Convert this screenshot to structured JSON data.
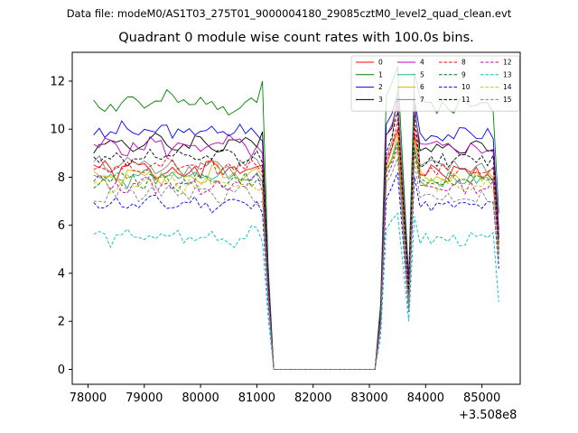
{
  "figure": {
    "suptitle": "Data file: modeM0/AS1T03_275T01_9000004180_29085cztM0_level2_quad_clean.evt"
  },
  "chart_data": {
    "type": "line",
    "title": "Quadrant 0 module wise count rates with 100.0s bins.",
    "xlabel": "",
    "ylabel": "",
    "x_offset_label": "+3.508e8",
    "xlim": [
      77720,
      85680
    ],
    "ylim": [
      -0.62,
      13.2
    ],
    "x_ticks": [
      78000,
      79000,
      80000,
      81000,
      82000,
      83000,
      84000,
      85000
    ],
    "y_ticks": [
      0,
      2,
      4,
      6,
      8,
      10,
      12
    ],
    "grid": false,
    "legend_position": "top-right",
    "legend_columns": 4,
    "x_start": 78100,
    "x_step": 100,
    "n_points": 73,
    "gap_range": [
      81400,
      83100
    ],
    "series": [
      {
        "name": "0",
        "color": "#ff0000",
        "dash": "solid",
        "base": 8.3,
        "amp": 0.35,
        "seed": 1,
        "edge_drop": 8.5,
        "spike_peak": 10.0,
        "spike_dip": 3.5,
        "end_value": 5.0
      },
      {
        "name": "1",
        "color": "#008000",
        "dash": "solid",
        "base": 11.1,
        "amp": 0.35,
        "seed": 2,
        "edge_drop": 12.0,
        "spike_peak": 12.6,
        "spike_dip": 3.8,
        "end_value": 6.5
      },
      {
        "name": "2",
        "color": "#0000ff",
        "dash": "solid",
        "base": 9.9,
        "amp": 0.3,
        "seed": 3,
        "edge_drop": 9.5,
        "spike_peak": 11.5,
        "spike_dip": 3.6,
        "end_value": 5.8
      },
      {
        "name": "3",
        "color": "#000000",
        "dash": "solid",
        "base": 9.4,
        "amp": 0.3,
        "seed": 4,
        "edge_drop": 9.9,
        "spike_peak": 11.3,
        "spike_dip": 3.3,
        "end_value": 5.5
      },
      {
        "name": "4",
        "color": "#c000c0",
        "dash": "solid",
        "base": 9.3,
        "amp": 0.35,
        "seed": 5,
        "edge_drop": 9.0,
        "spike_peak": 11.0,
        "spike_dip": 3.4,
        "end_value": 5.6
      },
      {
        "name": "5",
        "color": "#20b080",
        "dash": "solid",
        "base": 8.0,
        "amp": 0.3,
        "seed": 6,
        "edge_drop": 7.8,
        "spike_peak": 9.5,
        "spike_dip": 2.5,
        "end_value": 4.8
      },
      {
        "name": "6",
        "color": "#d4b800",
        "dash": "solid",
        "base": 8.1,
        "amp": 0.3,
        "seed": 7,
        "edge_drop": 8.0,
        "spike_peak": 9.8,
        "spike_dip": 2.9,
        "end_value": 5.0
      },
      {
        "name": "7",
        "color": "#808080",
        "dash": "solid",
        "base": 8.5,
        "amp": 0.35,
        "seed": 8,
        "edge_drop": 8.3,
        "spike_peak": 11.7,
        "spike_dip": 3.0,
        "end_value": 5.2
      },
      {
        "name": "8",
        "color": "#ff0000",
        "dash": "dashed",
        "base": 8.4,
        "amp": 0.3,
        "seed": 9,
        "edge_drop": 8.2,
        "spike_peak": 10.4,
        "spike_dip": 3.1,
        "end_value": 5.0
      },
      {
        "name": "9",
        "color": "#008000",
        "dash": "dashed",
        "base": 7.9,
        "amp": 0.3,
        "seed": 10,
        "edge_drop": 7.8,
        "spike_peak": 9.4,
        "spike_dip": 2.6,
        "end_value": 4.8
      },
      {
        "name": "10",
        "color": "#0000ff",
        "dash": "dashed",
        "base": 6.9,
        "amp": 0.25,
        "seed": 11,
        "edge_drop": 6.5,
        "spike_peak": 8.2,
        "spike_dip": 2.4,
        "end_value": 4.2
      },
      {
        "name": "11",
        "color": "#000000",
        "dash": "dashed",
        "base": 8.8,
        "amp": 0.3,
        "seed": 12,
        "edge_drop": 8.6,
        "spike_peak": 10.8,
        "spike_dip": 3.2,
        "end_value": 5.3
      },
      {
        "name": "12",
        "color": "#c000c0",
        "dash": "dashed",
        "base": 7.7,
        "amp": 0.3,
        "seed": 13,
        "edge_drop": 7.4,
        "spike_peak": 9.2,
        "spike_dip": 2.7,
        "end_value": 4.6
      },
      {
        "name": "13",
        "color": "#00c0c0",
        "dash": "dashed",
        "base": 5.5,
        "amp": 0.3,
        "seed": 14,
        "edge_drop": 5.3,
        "spike_peak": 6.5,
        "spike_dip": 2.0,
        "end_value": 2.8
      },
      {
        "name": "14",
        "color": "#c8c800",
        "dash": "dashed",
        "base": 7.8,
        "amp": 0.3,
        "seed": 15,
        "edge_drop": 7.5,
        "spike_peak": 9.0,
        "spike_dip": 2.6,
        "end_value": 4.6
      },
      {
        "name": "15",
        "color": "#808080",
        "dash": "dashed",
        "base": 7.3,
        "amp": 0.3,
        "seed": 16,
        "edge_drop": 7.0,
        "spike_peak": 8.8,
        "spike_dip": 2.5,
        "end_value": 4.4
      }
    ]
  }
}
